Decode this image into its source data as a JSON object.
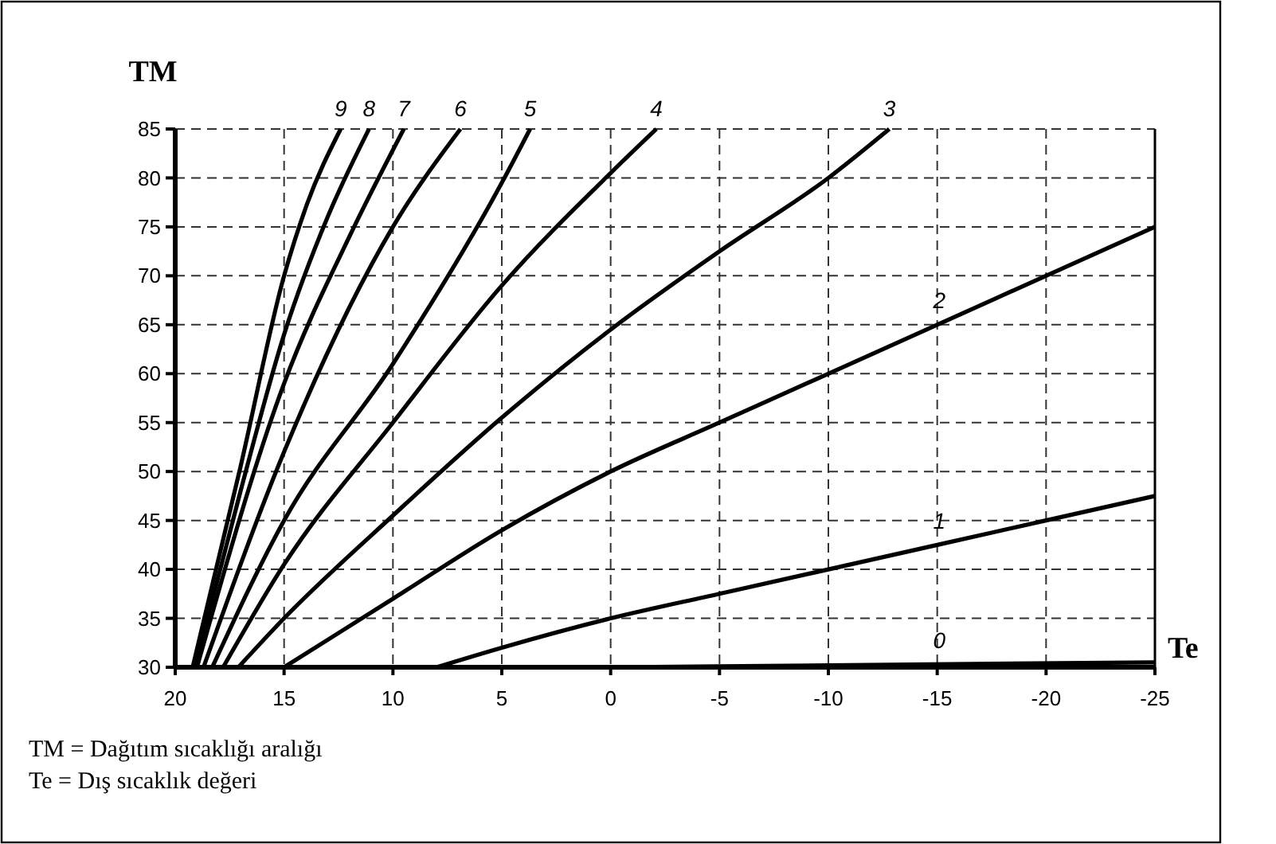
{
  "chart_data": {
    "type": "line",
    "xlabel": "Te",
    "ylabel": "TM",
    "xlim": [
      20,
      -25
    ],
    "xticks": [
      20,
      15,
      10,
      5,
      0,
      -5,
      -10,
      -15,
      -20,
      -25
    ],
    "ylim": [
      30,
      85
    ],
    "yticks": [
      30,
      35,
      40,
      45,
      50,
      55,
      60,
      65,
      70,
      75,
      80,
      85
    ],
    "grid": true,
    "marker": "none",
    "line_style": "solid",
    "series": [
      {
        "name": "0",
        "color": "#000000",
        "x": [
          0,
          -10,
          -25
        ],
        "values": [
          30,
          30.2,
          30.5
        ]
      },
      {
        "name": "1",
        "color": "#000000",
        "x": [
          8,
          5,
          0,
          -5,
          -10,
          -15,
          -20,
          -25
        ],
        "values": [
          30,
          32,
          35,
          37.5,
          40,
          42.5,
          45,
          47.5
        ]
      },
      {
        "name": "2",
        "color": "#000000",
        "x": [
          15,
          10,
          5,
          0,
          -5,
          -10,
          -15,
          -20,
          -25
        ],
        "values": [
          30,
          37,
          44,
          50,
          55,
          60,
          65,
          70,
          75
        ]
      },
      {
        "name": "3",
        "color": "#000000",
        "x": [
          17.1,
          15,
          10,
          5,
          0,
          -5,
          -10,
          -12.8
        ],
        "values": [
          30,
          35,
          45.5,
          55.5,
          64.5,
          72.5,
          80,
          85
        ]
      },
      {
        "name": "4",
        "color": "#000000",
        "x": [
          17.8,
          15,
          10,
          5,
          0,
          -2.1
        ],
        "values": [
          30,
          40.5,
          55,
          69,
          80.5,
          85
        ]
      },
      {
        "name": "5",
        "color": "#000000",
        "x": [
          18.3,
          15,
          10,
          5,
          3.7
        ],
        "values": [
          30,
          45,
          61,
          79.5,
          85
        ]
      },
      {
        "name": "6",
        "color": "#000000",
        "x": [
          18.7,
          15,
          10,
          6.9
        ],
        "values": [
          30,
          52,
          75,
          85
        ]
      },
      {
        "name": "7",
        "color": "#000000",
        "x": [
          19,
          15,
          12,
          9.5
        ],
        "values": [
          30,
          59,
          74,
          85
        ]
      },
      {
        "name": "8",
        "color": "#000000",
        "x": [
          19.1,
          17,
          15,
          13,
          11.1
        ],
        "values": [
          30,
          48,
          64,
          76,
          85
        ]
      },
      {
        "name": "9",
        "color": "#000000",
        "x": [
          19.2,
          17,
          15,
          14,
          12.4
        ],
        "values": [
          30,
          50.5,
          70,
          77,
          85
        ]
      }
    ],
    "annotations": [
      "TM = Dağıtım sıcaklığı aralığı",
      "Te = Dış sıcaklık değeri"
    ]
  }
}
